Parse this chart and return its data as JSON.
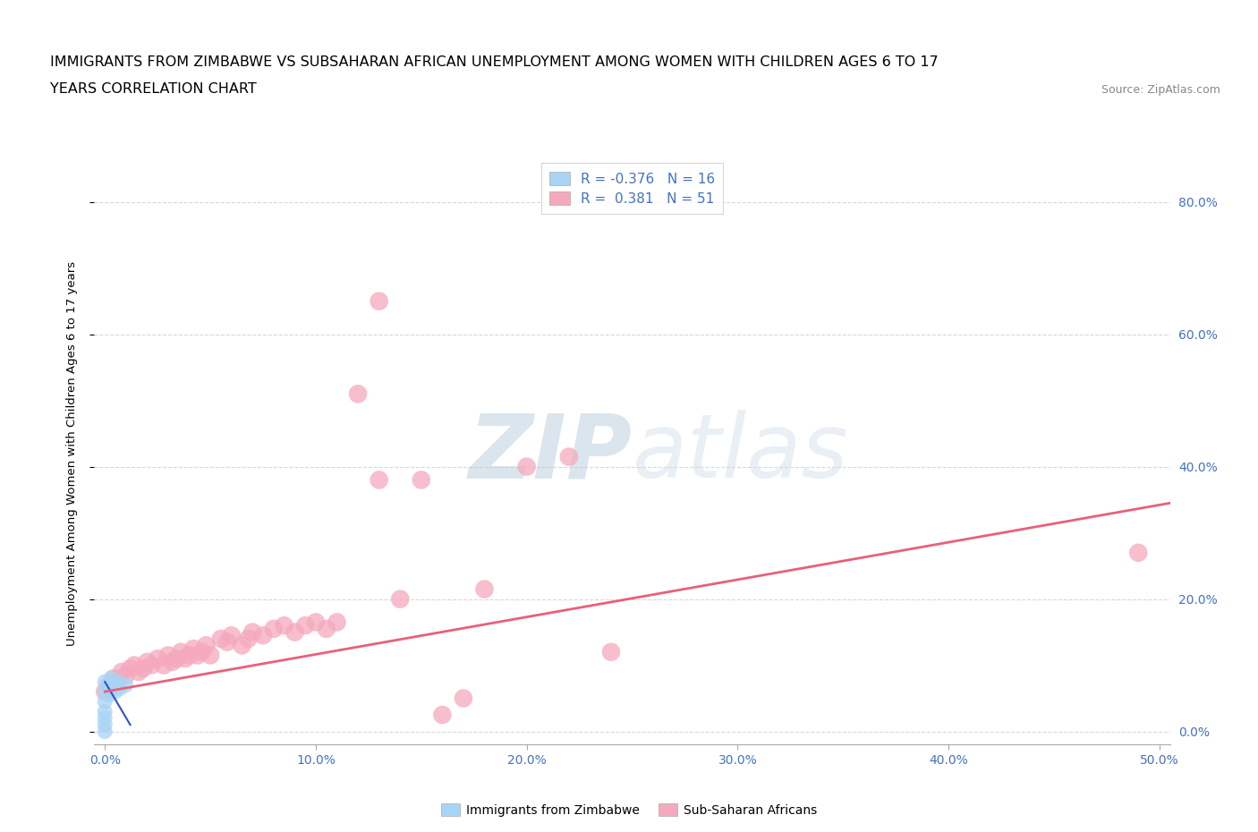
{
  "title_line1": "IMMIGRANTS FROM ZIMBABWE VS SUBSAHARAN AFRICAN UNEMPLOYMENT AMONG WOMEN WITH CHILDREN AGES 6 TO 17",
  "title_line2": "YEARS CORRELATION CHART",
  "source_text": "Source: ZipAtlas.com",
  "ylabel": "Unemployment Among Women with Children Ages 6 to 17 years",
  "xlim": [
    -0.005,
    0.505
  ],
  "ylim": [
    -0.02,
    0.86
  ],
  "xticks": [
    0.0,
    0.1,
    0.2,
    0.3,
    0.4,
    0.5
  ],
  "xticklabels": [
    "0.0%",
    "10.0%",
    "20.0%",
    "30.0%",
    "40.0%",
    "50.0%"
  ],
  "yticks": [
    0.0,
    0.2,
    0.4,
    0.6,
    0.8
  ],
  "yticklabels_right": [
    "0.0%",
    "20.0%",
    "40.0%",
    "60.0%",
    "80.0%"
  ],
  "legend_r_blue": "R = -0.376",
  "legend_n_blue": "N = 16",
  "legend_r_pink": "R =  0.381",
  "legend_n_pink": "N = 51",
  "legend_label_blue": "Immigrants from Zimbabwe",
  "legend_label_pink": "Sub-Saharan Africans",
  "blue_color": "#a8d4f5",
  "pink_color": "#f5a8be",
  "blue_edge_color": "#7ab5e0",
  "pink_edge_color": "#e87fa0",
  "blue_line_color": "#3050c8",
  "pink_line_color": "#e8607a",
  "tick_color": "#4472C4",
  "watermark_color": "#c8d8ee",
  "background_color": "#ffffff",
  "grid_color": "#d8d8d8",
  "title_fontsize": 11.5,
  "axis_label_fontsize": 9.5,
  "tick_fontsize": 10,
  "legend_fontsize": 11,
  "blue_scatter_x": [
    0.0,
    0.0,
    0.0,
    0.0,
    0.0,
    0.0,
    0.0,
    0.002,
    0.002,
    0.003,
    0.003,
    0.004,
    0.005,
    0.006,
    0.007,
    0.01
  ],
  "blue_scatter_y": [
    0.0,
    0.01,
    0.02,
    0.03,
    0.045,
    0.06,
    0.075,
    0.055,
    0.07,
    0.065,
    0.08,
    0.07,
    0.06,
    0.075,
    0.065,
    0.07
  ],
  "pink_scatter_x": [
    0.0,
    0.002,
    0.004,
    0.006,
    0.008,
    0.01,
    0.012,
    0.014,
    0.016,
    0.018,
    0.02,
    0.022,
    0.025,
    0.028,
    0.03,
    0.032,
    0.034,
    0.036,
    0.038,
    0.04,
    0.042,
    0.044,
    0.046,
    0.048,
    0.05,
    0.055,
    0.058,
    0.06,
    0.065,
    0.068,
    0.07,
    0.075,
    0.08,
    0.085,
    0.09,
    0.095,
    0.1,
    0.105,
    0.11,
    0.12,
    0.13,
    0.14,
    0.15,
    0.16,
    0.17,
    0.18,
    0.2,
    0.22,
    0.24,
    0.49,
    0.13
  ],
  "pink_scatter_y": [
    0.06,
    0.07,
    0.08,
    0.075,
    0.09,
    0.085,
    0.095,
    0.1,
    0.09,
    0.095,
    0.105,
    0.1,
    0.11,
    0.1,
    0.115,
    0.105,
    0.11,
    0.12,
    0.11,
    0.115,
    0.125,
    0.115,
    0.12,
    0.13,
    0.115,
    0.14,
    0.135,
    0.145,
    0.13,
    0.14,
    0.15,
    0.145,
    0.155,
    0.16,
    0.15,
    0.16,
    0.165,
    0.155,
    0.165,
    0.51,
    0.38,
    0.2,
    0.38,
    0.025,
    0.05,
    0.215,
    0.4,
    0.415,
    0.12,
    0.27,
    0.65
  ],
  "blue_trend_x": [
    0.0,
    0.012
  ],
  "blue_trend_y": [
    0.075,
    0.01
  ],
  "pink_trend_x": [
    0.0,
    0.505
  ],
  "pink_trend_y": [
    0.06,
    0.345
  ]
}
